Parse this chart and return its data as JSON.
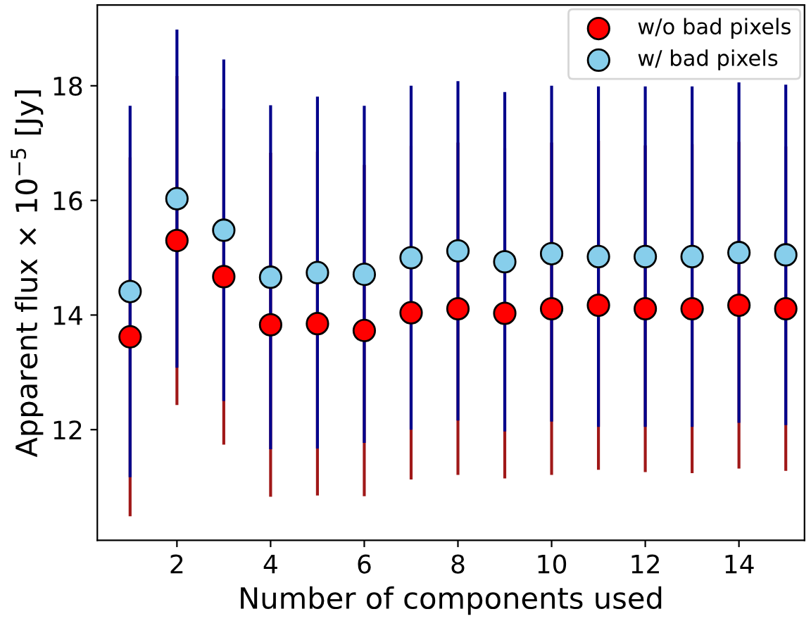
{
  "chart_data": {
    "type": "scatter",
    "xlabel": "Number of components used",
    "ylabel": "Apparent flux × 10$^{−5}$ [Jy]",
    "x": [
      1,
      2,
      3,
      4,
      5,
      6,
      7,
      8,
      9,
      10,
      11,
      12,
      13,
      14,
      15
    ],
    "series": [
      {
        "name": "w/o bad pixels",
        "color": "#ff0000",
        "values": [
          13.62,
          15.3,
          14.67,
          13.83,
          13.85,
          13.73,
          14.04,
          14.11,
          14.03,
          14.11,
          14.17,
          14.11,
          14.11,
          14.17,
          14.11
        ],
        "errors": [
          3.13,
          2.87,
          2.93,
          3.0,
          3.0,
          2.89,
          2.91,
          2.9,
          2.88,
          2.9,
          2.87,
          2.85,
          2.87,
          2.85,
          2.83
        ]
      },
      {
        "name": "w/ bad pixels",
        "color": "#87ceeb",
        "values": [
          14.41,
          16.03,
          15.48,
          14.66,
          14.74,
          14.71,
          15.0,
          15.12,
          14.93,
          15.07,
          15.02,
          15.02,
          15.02,
          15.09,
          15.05
        ],
        "errors": [
          3.24,
          2.95,
          2.98,
          3.0,
          3.07,
          2.94,
          3.0,
          2.96,
          2.96,
          2.93,
          2.97,
          2.97,
          2.97,
          2.97,
          2.97
        ]
      }
    ],
    "xlim": [
      0.3,
      15.4
    ],
    "ylim": [
      10.07,
      19.41
    ],
    "xticks": [
      2,
      4,
      6,
      8,
      10,
      12,
      14
    ],
    "yticks": [
      12,
      14,
      16,
      18
    ],
    "marker": "circle",
    "legend": "top right",
    "grid": false
  }
}
